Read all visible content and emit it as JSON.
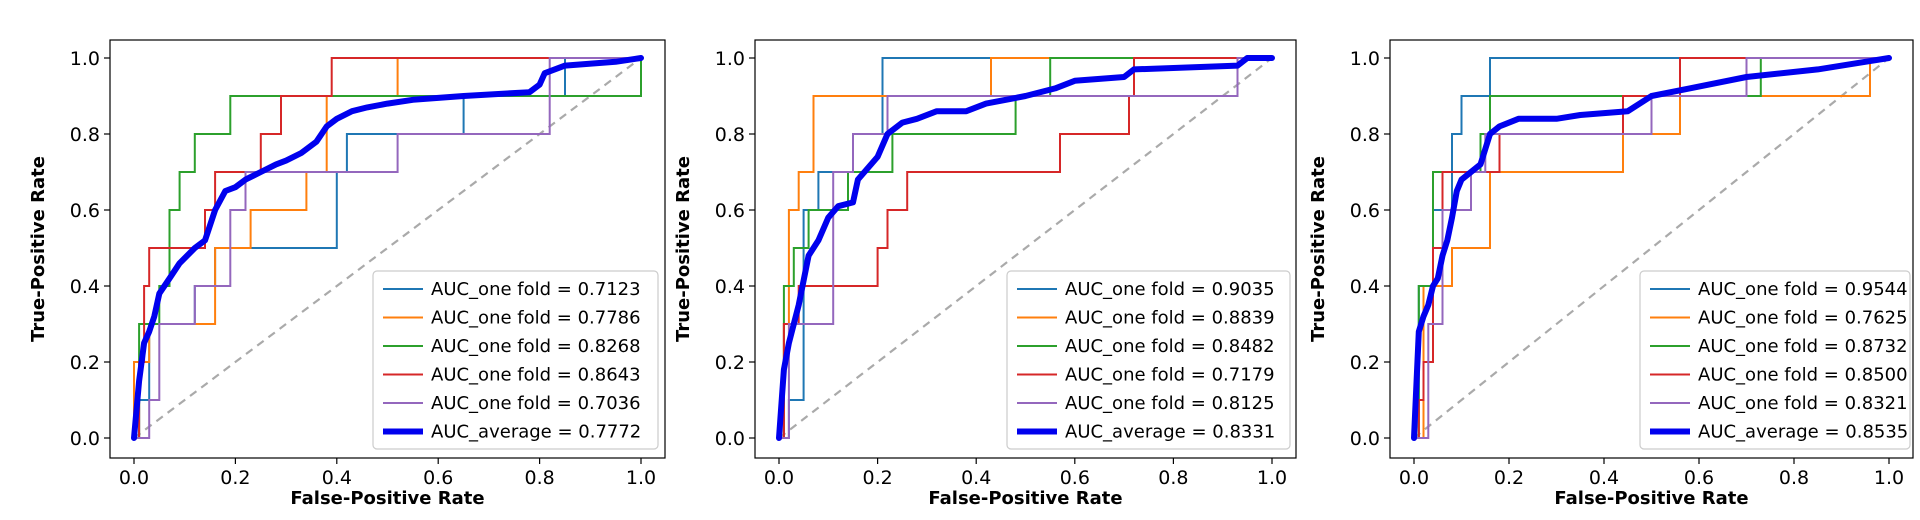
{
  "chart_data": [
    {
      "type": "line",
      "xlabel": "False-Positive Rate",
      "ylabel": "True-Positive Rate",
      "xlim": [
        0,
        1
      ],
      "ylim": [
        0,
        1
      ],
      "ticks": [
        "0.0",
        "0.2",
        "0.4",
        "0.6",
        "0.8",
        "1.0"
      ],
      "legend_position": "lower-right",
      "diagonal_color": "#aaaaaa",
      "series": [
        {
          "name": "AUC_one fold = 0.7123",
          "color": "#1f77b4",
          "width": 2,
          "x": [
            0,
            0.01,
            0.01,
            0.03,
            0.03,
            0.12,
            0.12,
            0.16,
            0.16,
            0.2,
            0.2,
            0.4,
            0.4,
            0.42,
            0.42,
            0.65,
            0.65,
            0.85,
            0.85,
            1.0
          ],
          "y": [
            0,
            0,
            0.1,
            0.1,
            0.3,
            0.3,
            0.4,
            0.4,
            0.5,
            0.5,
            0.5,
            0.5,
            0.7,
            0.7,
            0.8,
            0.8,
            0.9,
            0.9,
            1.0,
            1.0
          ]
        },
        {
          "name": "AUC_one fold = 0.7786",
          "color": "#ff7f0e",
          "width": 2,
          "x": [
            0,
            0,
            0.03,
            0.03,
            0.16,
            0.16,
            0.23,
            0.23,
            0.34,
            0.34,
            0.38,
            0.38,
            0.52,
            0.52,
            1.0
          ],
          "y": [
            0,
            0.2,
            0.2,
            0.3,
            0.3,
            0.5,
            0.5,
            0.6,
            0.6,
            0.7,
            0.7,
            0.9,
            0.9,
            1.0,
            1.0
          ]
        },
        {
          "name": "AUC_one fold = 0.8268",
          "color": "#2ca02c",
          "width": 2,
          "x": [
            0,
            0.01,
            0.01,
            0.05,
            0.05,
            0.07,
            0.07,
            0.09,
            0.09,
            0.12,
            0.12,
            0.19,
            0.19,
            0.45,
            0.45,
            1.0,
            1.0
          ],
          "y": [
            0,
            0,
            0.3,
            0.3,
            0.4,
            0.4,
            0.6,
            0.6,
            0.7,
            0.7,
            0.8,
            0.8,
            0.9,
            0.9,
            0.9,
            0.9,
            1.0
          ]
        },
        {
          "name": "AUC_one fold = 0.8643",
          "color": "#d62728",
          "width": 2,
          "x": [
            0,
            0.01,
            0.01,
            0.02,
            0.02,
            0.03,
            0.03,
            0.14,
            0.14,
            0.16,
            0.16,
            0.25,
            0.25,
            0.29,
            0.29,
            0.39,
            0.39,
            0.41,
            0.41,
            1.0
          ],
          "y": [
            0,
            0,
            0.2,
            0.2,
            0.4,
            0.4,
            0.5,
            0.5,
            0.6,
            0.6,
            0.7,
            0.7,
            0.8,
            0.8,
            0.9,
            0.9,
            1.0,
            1.0,
            1.0,
            1.0
          ]
        },
        {
          "name": "AUC_one fold = 0.7036",
          "color": "#9467bd",
          "width": 2,
          "x": [
            0,
            0.03,
            0.03,
            0.05,
            0.05,
            0.12,
            0.12,
            0.19,
            0.19,
            0.22,
            0.22,
            0.52,
            0.52,
            0.82,
            0.82,
            1.0
          ],
          "y": [
            0,
            0,
            0.1,
            0.1,
            0.3,
            0.3,
            0.4,
            0.4,
            0.6,
            0.6,
            0.7,
            0.7,
            0.8,
            0.8,
            1.0,
            1.0
          ]
        },
        {
          "name": "AUC_average = 0.7772",
          "color": "#0000ee",
          "width": 6,
          "x": [
            0,
            0.01,
            0.02,
            0.03,
            0.04,
            0.05,
            0.07,
            0.09,
            0.12,
            0.14,
            0.16,
            0.18,
            0.2,
            0.22,
            0.25,
            0.28,
            0.3,
            0.33,
            0.36,
            0.38,
            0.4,
            0.43,
            0.46,
            0.5,
            0.55,
            0.65,
            0.78,
            0.8,
            0.81,
            0.85,
            0.95,
            1.0
          ],
          "y": [
            0,
            0.15,
            0.25,
            0.28,
            0.32,
            0.38,
            0.42,
            0.46,
            0.5,
            0.52,
            0.6,
            0.65,
            0.66,
            0.68,
            0.7,
            0.72,
            0.73,
            0.75,
            0.78,
            0.82,
            0.84,
            0.86,
            0.87,
            0.88,
            0.89,
            0.9,
            0.91,
            0.93,
            0.96,
            0.98,
            0.99,
            1.0
          ]
        }
      ]
    },
    {
      "type": "line",
      "xlabel": "False-Positive Rate",
      "ylabel": "True-Positive Rate",
      "xlim": [
        0,
        1
      ],
      "ylim": [
        0,
        1
      ],
      "ticks": [
        "0.0",
        "0.2",
        "0.4",
        "0.6",
        "0.8",
        "1.0"
      ],
      "legend_position": "lower-right",
      "diagonal_color": "#aaaaaa",
      "series": [
        {
          "name": "AUC_one fold = 0.9035",
          "color": "#1f77b4",
          "width": 2,
          "x": [
            0,
            0.02,
            0.02,
            0.05,
            0.05,
            0.08,
            0.08,
            0.15,
            0.15,
            0.21,
            0.21,
            1.0
          ],
          "y": [
            0,
            0,
            0.1,
            0.1,
            0.6,
            0.6,
            0.7,
            0.7,
            0.8,
            0.8,
            1.0,
            1.0
          ]
        },
        {
          "name": "AUC_one fold = 0.8839",
          "color": "#ff7f0e",
          "width": 2,
          "x": [
            0,
            0.01,
            0.01,
            0.02,
            0.02,
            0.04,
            0.04,
            0.07,
            0.07,
            0.32,
            0.32,
            0.43,
            0.43,
            1.0
          ],
          "y": [
            0,
            0,
            0.3,
            0.3,
            0.6,
            0.6,
            0.7,
            0.7,
            0.9,
            0.9,
            0.9,
            0.9,
            1.0,
            1.0
          ]
        },
        {
          "name": "AUC_one fold = 0.8482",
          "color": "#2ca02c",
          "width": 2,
          "x": [
            0,
            0.01,
            0.01,
            0.03,
            0.03,
            0.06,
            0.06,
            0.14,
            0.14,
            0.23,
            0.23,
            0.48,
            0.48,
            0.55,
            0.55,
            0.71,
            0.71,
            1.0
          ],
          "y": [
            0,
            0,
            0.4,
            0.4,
            0.5,
            0.5,
            0.6,
            0.6,
            0.7,
            0.7,
            0.8,
            0.8,
            0.9,
            0.9,
            1.0,
            1.0,
            1.0,
            1.0
          ]
        },
        {
          "name": "AUC_one fold = 0.7179",
          "color": "#d62728",
          "width": 2,
          "x": [
            0,
            0.01,
            0.01,
            0.04,
            0.04,
            0.06,
            0.06,
            0.2,
            0.2,
            0.22,
            0.22,
            0.26,
            0.26,
            0.27,
            0.27,
            0.57,
            0.57,
            0.71,
            0.71,
            0.72,
            0.72,
            1.0
          ],
          "y": [
            0,
            0,
            0.3,
            0.3,
            0.4,
            0.4,
            0.4,
            0.4,
            0.5,
            0.5,
            0.6,
            0.6,
            0.7,
            0.7,
            0.7,
            0.7,
            0.8,
            0.8,
            0.9,
            0.9,
            1.0,
            1.0
          ]
        },
        {
          "name": "AUC_one fold = 0.8125",
          "color": "#9467bd",
          "width": 2,
          "x": [
            0,
            0.02,
            0.02,
            0.06,
            0.06,
            0.11,
            0.11,
            0.15,
            0.15,
            0.22,
            0.22,
            0.71,
            0.71,
            0.93,
            0.93,
            1.0
          ],
          "y": [
            0,
            0,
            0.3,
            0.3,
            0.3,
            0.3,
            0.7,
            0.7,
            0.8,
            0.8,
            0.9,
            0.9,
            0.9,
            0.9,
            1.0,
            1.0
          ]
        },
        {
          "name": "AUC_average = 0.8331",
          "color": "#0000ee",
          "width": 6,
          "x": [
            0,
            0.01,
            0.02,
            0.03,
            0.04,
            0.06,
            0.08,
            0.1,
            0.12,
            0.15,
            0.16,
            0.2,
            0.22,
            0.25,
            0.28,
            0.32,
            0.38,
            0.42,
            0.5,
            0.56,
            0.6,
            0.7,
            0.72,
            0.93,
            0.95,
            1.0
          ],
          "y": [
            0,
            0.18,
            0.25,
            0.3,
            0.35,
            0.48,
            0.52,
            0.58,
            0.61,
            0.62,
            0.68,
            0.74,
            0.8,
            0.83,
            0.84,
            0.86,
            0.86,
            0.88,
            0.9,
            0.92,
            0.94,
            0.95,
            0.97,
            0.98,
            1.0,
            1.0
          ]
        }
      ]
    },
    {
      "type": "line",
      "xlabel": "False-Positive Rate",
      "ylabel": "True-Positive Rate",
      "xlim": [
        0,
        1
      ],
      "ylim": [
        0,
        1
      ],
      "ticks": [
        "0.0",
        "0.2",
        "0.4",
        "0.6",
        "0.8",
        "1.0"
      ],
      "legend_position": "lower-right",
      "diagonal_color": "#aaaaaa",
      "series": [
        {
          "name": "AUC_one fold = 0.9544",
          "color": "#1f77b4",
          "width": 2,
          "x": [
            0,
            0.01,
            0.01,
            0.04,
            0.04,
            0.08,
            0.08,
            0.1,
            0.1,
            0.16,
            0.16,
            1.0
          ],
          "y": [
            0,
            0,
            0.4,
            0.4,
            0.6,
            0.6,
            0.8,
            0.8,
            0.9,
            0.9,
            1.0,
            1.0
          ]
        },
        {
          "name": "AUC_one fold = 0.7625",
          "color": "#ff7f0e",
          "width": 2,
          "x": [
            0,
            0.02,
            0.02,
            0.08,
            0.08,
            0.16,
            0.16,
            0.44,
            0.44,
            0.56,
            0.56,
            0.96,
            0.96,
            1.0
          ],
          "y": [
            0,
            0,
            0.4,
            0.4,
            0.5,
            0.5,
            0.7,
            0.7,
            0.8,
            0.8,
            0.9,
            0.9,
            1.0,
            1.0
          ]
        },
        {
          "name": "AUC_one fold = 0.8732",
          "color": "#2ca02c",
          "width": 2,
          "x": [
            0,
            0.01,
            0.01,
            0.04,
            0.04,
            0.14,
            0.14,
            0.16,
            0.16,
            0.5,
            0.5,
            0.73,
            0.73,
            1.0
          ],
          "y": [
            0,
            0,
            0.4,
            0.4,
            0.7,
            0.7,
            0.8,
            0.8,
            0.9,
            0.9,
            0.9,
            0.9,
            1.0,
            1.0
          ]
        },
        {
          "name": "AUC_one fold = 0.8500",
          "color": "#d62728",
          "width": 2,
          "x": [
            0,
            0.01,
            0.01,
            0.02,
            0.02,
            0.04,
            0.04,
            0.06,
            0.06,
            0.18,
            0.18,
            0.44,
            0.44,
            0.56,
            0.56,
            1.0
          ],
          "y": [
            0,
            0,
            0.1,
            0.1,
            0.2,
            0.2,
            0.5,
            0.5,
            0.7,
            0.7,
            0.8,
            0.8,
            0.9,
            0.9,
            1.0,
            1.0
          ]
        },
        {
          "name": "AUC_one fold = 0.8321",
          "color": "#9467bd",
          "width": 2,
          "x": [
            0,
            0.03,
            0.03,
            0.06,
            0.06,
            0.12,
            0.12,
            0.15,
            0.15,
            0.5,
            0.5,
            0.7,
            0.7,
            1.0
          ],
          "y": [
            0,
            0,
            0.3,
            0.3,
            0.6,
            0.6,
            0.7,
            0.7,
            0.8,
            0.8,
            0.9,
            0.9,
            1.0,
            1.0
          ]
        },
        {
          "name": "AUC_average = 0.8535",
          "color": "#0000ee",
          "width": 6,
          "x": [
            0,
            0.01,
            0.02,
            0.03,
            0.04,
            0.05,
            0.06,
            0.07,
            0.08,
            0.09,
            0.1,
            0.12,
            0.14,
            0.16,
            0.18,
            0.22,
            0.3,
            0.35,
            0.45,
            0.5,
            0.58,
            0.7,
            0.85,
            0.95,
            1.0
          ],
          "y": [
            0,
            0.28,
            0.32,
            0.35,
            0.4,
            0.42,
            0.48,
            0.52,
            0.58,
            0.65,
            0.68,
            0.7,
            0.72,
            0.8,
            0.82,
            0.84,
            0.84,
            0.85,
            0.86,
            0.9,
            0.92,
            0.95,
            0.97,
            0.99,
            1.0
          ]
        }
      ]
    }
  ]
}
